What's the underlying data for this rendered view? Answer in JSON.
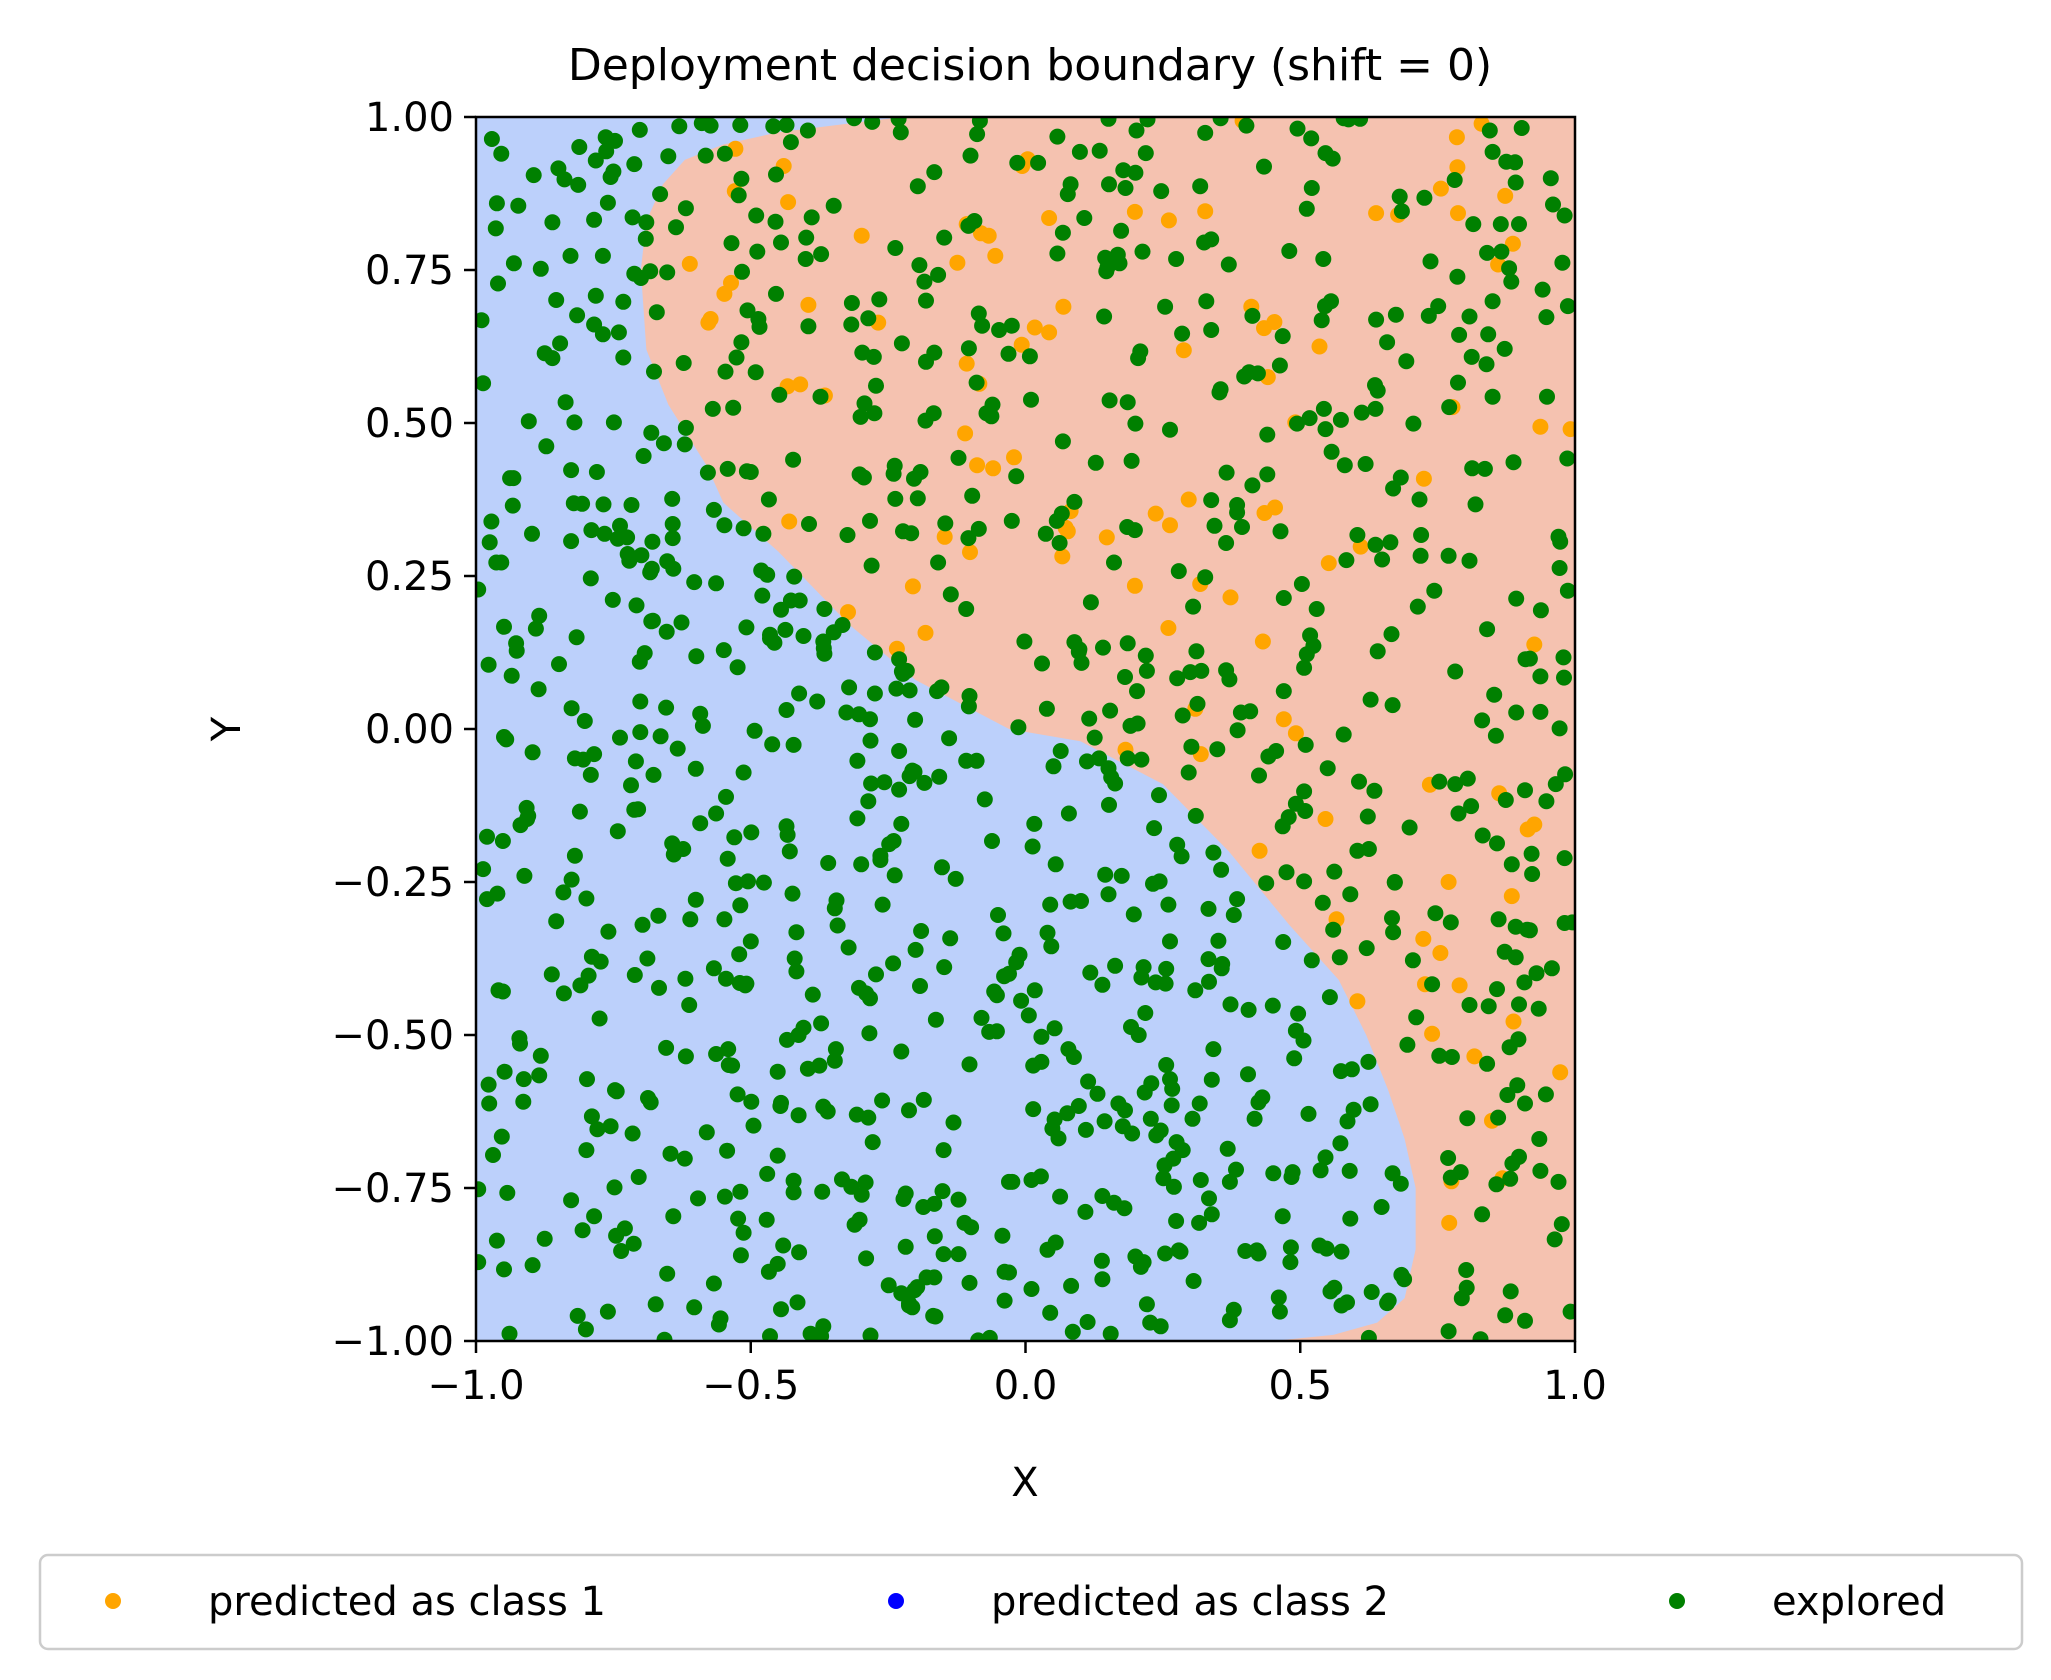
{
  "chart_data": {
    "type": "scatter",
    "title": "Deployment decision boundary (shift = 0)",
    "xlabel": "X",
    "ylabel": "Y",
    "xlim": [
      -1.0,
      1.0
    ],
    "ylim": [
      -1.0,
      1.0
    ],
    "xticks": [
      -1.0,
      -0.5,
      0.0,
      0.5,
      1.0
    ],
    "xtick_labels": [
      "−1.0",
      "−0.5",
      "0.0",
      "0.5",
      "1.0"
    ],
    "yticks": [
      -1.0,
      -0.75,
      -0.5,
      -0.25,
      0.0,
      0.25,
      0.5,
      0.75,
      1.0
    ],
    "ytick_labels": [
      "−1.00",
      "−0.75",
      "−0.50",
      "−0.25",
      "0.00",
      "0.25",
      "0.50",
      "0.75",
      "1.00"
    ],
    "grid": false,
    "legend_position": "bottom-center",
    "background_regions": [
      {
        "name": "class-2-region",
        "color": "#bcd0fb"
      },
      {
        "name": "class-1-region",
        "color": "#f5c2b0"
      }
    ],
    "decision_boundary": {
      "x": [
        -0.22,
        -0.27,
        -0.45,
        -0.55,
        -0.62,
        -0.66,
        -0.69,
        -0.7,
        -0.69,
        -0.65,
        -0.58,
        -0.55,
        -0.45,
        -0.32,
        -0.2,
        -0.03,
        0.1,
        0.25,
        0.37,
        0.48,
        0.57,
        0.62,
        0.66,
        0.69,
        0.71,
        0.71,
        0.69,
        0.64,
        0.56,
        0.45
      ],
      "y": [
        1.0,
        0.995,
        0.975,
        0.955,
        0.93,
        0.89,
        0.83,
        0.75,
        0.62,
        0.53,
        0.43,
        0.37,
        0.29,
        0.17,
        0.08,
        0.0,
        -0.02,
        -0.09,
        -0.2,
        -0.32,
        -0.41,
        -0.5,
        -0.59,
        -0.67,
        -0.75,
        -0.85,
        -0.93,
        -0.97,
        -0.99,
        -1.0
      ]
    },
    "series": [
      {
        "name": "predicted as class 1",
        "color": "#ffa500",
        "x": [],
        "y": []
      },
      {
        "name": "predicted as class 2",
        "color": "#0000ff",
        "x": [],
        "y": []
      },
      {
        "name": "explored",
        "color": "#008000",
        "x": [],
        "y": []
      }
    ],
    "random_points": {
      "count": 1200,
      "class_1_fraction": 0.1
    }
  }
}
